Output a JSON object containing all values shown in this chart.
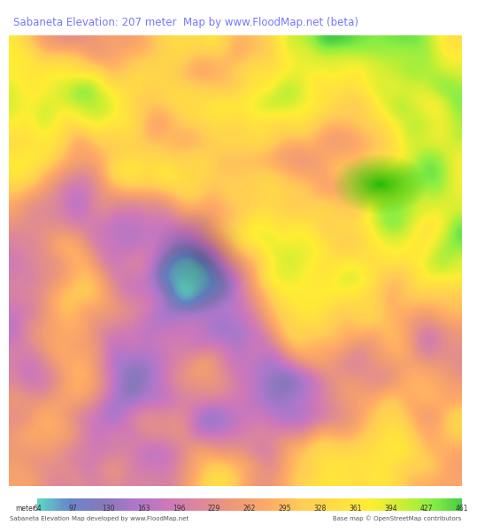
{
  "title": "Sabaneta Elevation: 207 meter  Map by www.FloodMap.net (beta)",
  "title_color": "#7777ff",
  "title_bg": "#e8e8e8",
  "bottom_text_left": "Sabaneta Elevation Map developed by www.FloodMap.net",
  "bottom_text_right": "Base map © OpenStreetMap contributors",
  "colorbar_labels": [
    "meter",
    "64",
    "97",
    "130",
    "163",
    "196",
    "229",
    "262",
    "295",
    "328",
    "361",
    "394",
    "427",
    "461"
  ],
  "colorbar_colors": [
    "#7fffd4",
    "#5588cc",
    "#9988cc",
    "#cc88cc",
    "#dd88aa",
    "#ee9988",
    "#ffaa77",
    "#ffbb66",
    "#ffcc55",
    "#ffdd44",
    "#ffee33",
    "#aaee33",
    "#55ee44"
  ],
  "fig_width": 5.12,
  "fig_height": 5.82,
  "map_bg": "#e8e8e0",
  "bottom_bar_height": 0.075
}
